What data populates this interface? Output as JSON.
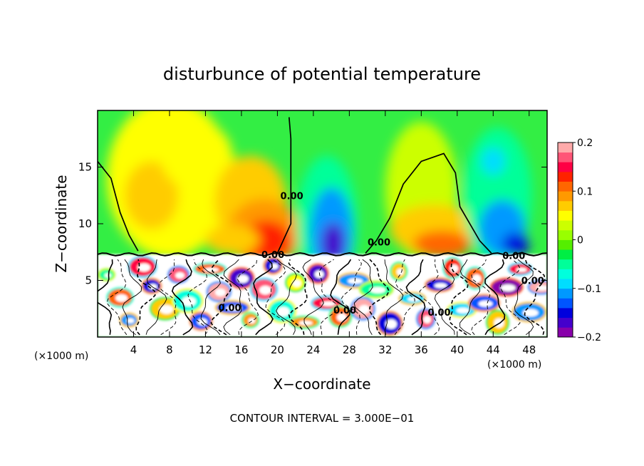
{
  "chart_data": {
    "type": "heatmap",
    "title": "disturbunce of potential temperature",
    "xlabel": "X−coordinate",
    "ylabel": "Z−coordinate",
    "x_units_left": "(×1000 m)",
    "x_units_right": "(×1000 m)",
    "footer": "CONTOUR INTERVAL = 3.000E−01",
    "xlim": [
      0,
      50
    ],
    "ylim": [
      0,
      20
    ],
    "x_ticks": [
      "4",
      "8",
      "12",
      "16",
      "20",
      "24",
      "28",
      "32",
      "36",
      "40",
      "44",
      "48"
    ],
    "x_tick_values": [
      4,
      8,
      12,
      16,
      20,
      24,
      28,
      32,
      36,
      40,
      44,
      48
    ],
    "y_ticks": [
      "5",
      "10",
      "15"
    ],
    "y_tick_values": [
      5,
      10,
      15
    ],
    "colorbar": {
      "min": -0.2,
      "max": 0.2,
      "tick_labels": [
        "0.2",
        "0.1",
        "0",
        "−0.1",
        "−0.2"
      ],
      "tick_values": [
        0.2,
        0.1,
        0,
        -0.1,
        -0.2
      ],
      "colors": [
        "#8800aa",
        "#4400cc",
        "#0000dd",
        "#0055ff",
        "#0099ff",
        "#00ddff",
        "#00ffdd",
        "#00ff99",
        "#00ee44",
        "#55ee00",
        "#99ff00",
        "#ccff00",
        "#ffff00",
        "#ffcc00",
        "#ff9900",
        "#ff6600",
        "#ff2200",
        "#ff0044",
        "#ff5577",
        "#ffaaaa"
      ]
    },
    "contour_labels": [
      {
        "text": "0.00",
        "x": 19.5,
        "y": 7.3
      },
      {
        "text": "0.00",
        "x": 21.6,
        "y": 12.5
      },
      {
        "text": "0.00",
        "x": 31.3,
        "y": 8.4
      },
      {
        "text": "0.00",
        "x": 14.7,
        "y": 2.6
      },
      {
        "text": "0.00",
        "x": 27.5,
        "y": 2.4
      },
      {
        "text": "0.00",
        "x": 38.0,
        "y": 2.2
      },
      {
        "text": "0.00",
        "x": 46.3,
        "y": 7.2
      },
      {
        "text": "0.00",
        "x": 48.4,
        "y": 5.0
      }
    ]
  }
}
